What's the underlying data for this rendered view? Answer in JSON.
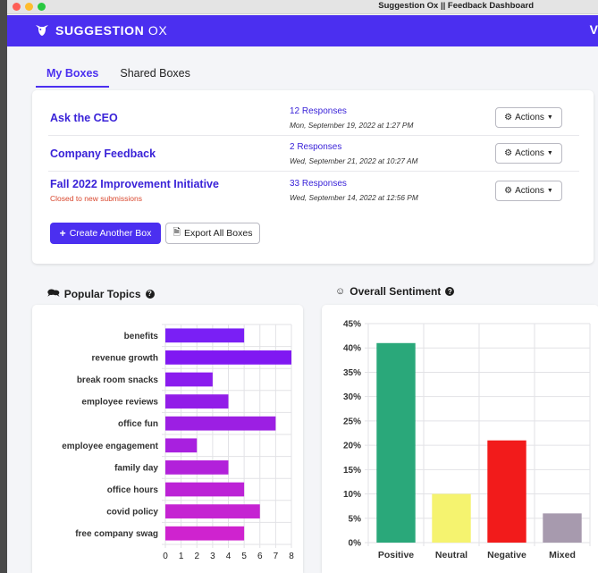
{
  "window": {
    "title": "Suggestion Ox || Feedback Dashboard"
  },
  "colors": {
    "brand": "#4b2ff0",
    "link": "#3a23d8",
    "closed_text": "#d9482f"
  },
  "navbar": {
    "logo_word1": "SUGGESTION",
    "logo_word2": "OX",
    "edge_glyph": "V",
    "logo_icon": "ox-head-icon"
  },
  "tabs": [
    {
      "label": "My Boxes"
    },
    {
      "label": "Shared Boxes"
    }
  ],
  "boxes": [
    {
      "name": "Ask the CEO",
      "status": "",
      "responses": "12 Responses",
      "date": "Mon, September 19, 2022 at 1:27 PM",
      "actions_label": "Actions"
    },
    {
      "name": "Company Feedback",
      "status": "",
      "responses": "2 Responses",
      "date": "Wed, September 21, 2022 at 10:27 AM",
      "actions_label": "Actions"
    },
    {
      "name": "Fall 2022 Improvement Initiative",
      "status": "Closed to new submissions",
      "responses": "33 Responses",
      "date": "Wed, September 14, 2022 at 12:56 PM",
      "actions_label": "Actions"
    }
  ],
  "buttons": {
    "create": "Create Another Box",
    "export": "Export All Boxes"
  },
  "sections": {
    "topics": "Popular Topics",
    "sentiment": "Overall Sentiment"
  },
  "chart_data": [
    {
      "type": "bar",
      "orientation": "horizontal",
      "categories": [
        "benefits",
        "revenue growth",
        "break room snacks",
        "employee reviews",
        "office fun",
        "employee engagement",
        "family day",
        "office hours",
        "covid policy",
        "free company swag"
      ],
      "values": [
        5,
        8,
        3,
        4,
        7,
        2,
        4,
        5,
        6,
        5
      ],
      "xlim": [
        0,
        8
      ],
      "x_ticks": [
        "0",
        "1",
        "2",
        "3",
        "4",
        "5",
        "6",
        "7",
        "8"
      ],
      "grid": true,
      "bar_colors": [
        "#7a1ff5",
        "#8018f2",
        "#8a1cee",
        "#921de8",
        "#9c1fe3",
        "#a820df",
        "#b221da",
        "#bc22d6",
        "#c523d2",
        "#cf23cf"
      ]
    },
    {
      "type": "bar",
      "categories": [
        "Positive",
        "Neutral",
        "Negative",
        "Mixed"
      ],
      "values": [
        41,
        10,
        21,
        6
      ],
      "ylim": [
        0,
        45
      ],
      "y_ticks": [
        "0%",
        "5%",
        "10%",
        "15%",
        "20%",
        "25%",
        "30%",
        "35%",
        "40%",
        "45%"
      ],
      "grid": true,
      "bar_colors": [
        "#2aa87a",
        "#f5f36f",
        "#f21b1b",
        "#a79aae"
      ]
    }
  ]
}
